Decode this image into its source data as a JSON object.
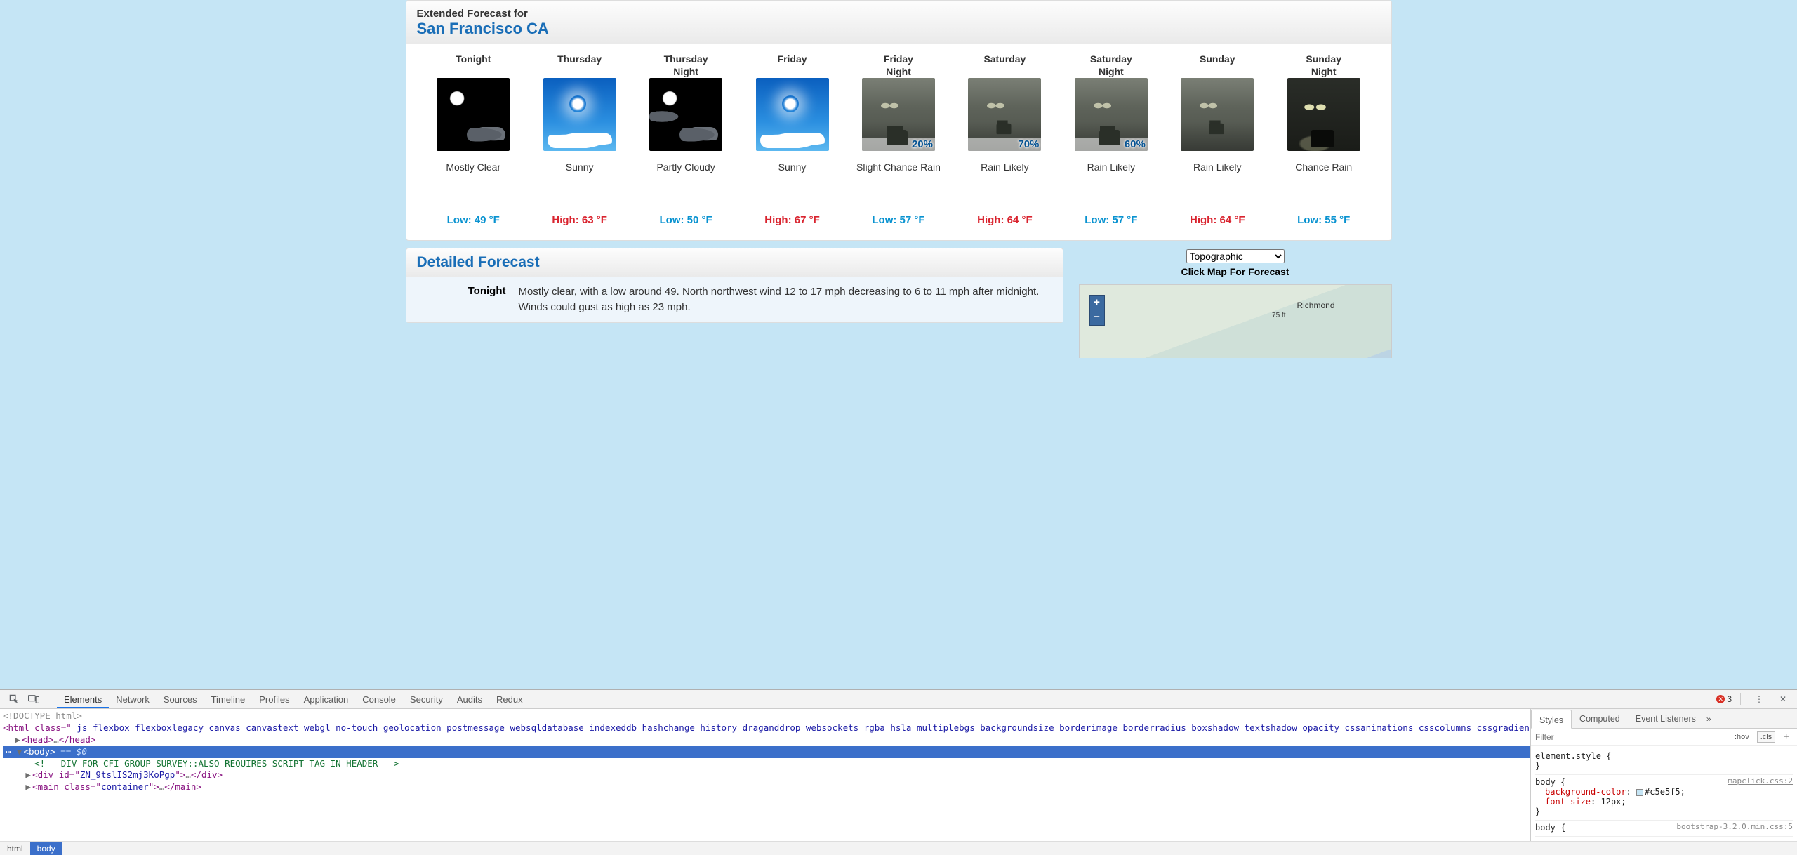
{
  "forecast_panel": {
    "heading_sub": "Extended Forecast for",
    "heading_title": "San Francisco CA"
  },
  "periods": [
    {
      "name1": "Tonight",
      "name2": "",
      "icon": "night",
      "pct": "",
      "short": "Mostly Clear",
      "temp_label": "Low: 49 °F",
      "temp_kind": "low"
    },
    {
      "name1": "Thursday",
      "name2": "",
      "icon": "sunny",
      "pct": "",
      "short": "Sunny",
      "temp_label": "High: 63 °F",
      "temp_kind": "high"
    },
    {
      "name1": "Thursday",
      "name2": "Night",
      "icon": "night-pc",
      "pct": "",
      "short": "Partly Cloudy",
      "temp_label": "Low: 50 °F",
      "temp_kind": "low"
    },
    {
      "name1": "Friday",
      "name2": "",
      "icon": "sunny",
      "pct": "",
      "short": "Sunny",
      "temp_label": "High: 67 °F",
      "temp_kind": "high"
    },
    {
      "name1": "Friday",
      "name2": "Night",
      "icon": "rain",
      "pct": "20%",
      "short": "Slight Chance Rain",
      "temp_label": "Low: 57 °F",
      "temp_kind": "low"
    },
    {
      "name1": "Saturday",
      "name2": "",
      "icon": "rain-far",
      "pct": "70%",
      "short": "Rain Likely",
      "temp_label": "High: 64 °F",
      "temp_kind": "high"
    },
    {
      "name1": "Saturday",
      "name2": "Night",
      "icon": "rain",
      "pct": "60%",
      "short": "Rain Likely",
      "temp_label": "Low: 57 °F",
      "temp_kind": "low"
    },
    {
      "name1": "Sunday",
      "name2": "",
      "icon": "rain-far",
      "pct": "",
      "short": "Rain Likely",
      "temp_label": "High: 64 °F",
      "temp_kind": "high"
    },
    {
      "name1": "Sunday",
      "name2": "Night",
      "icon": "nrain",
      "pct": "",
      "short": "Chance Rain",
      "temp_label": "Low: 55 °F",
      "temp_kind": "low"
    }
  ],
  "detailed": {
    "title": "Detailed Forecast",
    "row_label": "Tonight",
    "row_text": "Mostly clear, with a low around 49. North northwest wind 12 to 17 mph decreasing to 6 to 11 mph after midnight. Winds could gust as high as 23 mph."
  },
  "map": {
    "select_value": "Topographic",
    "caption": "Click Map For Forecast",
    "city1": "Richmond",
    "elev": "75 ft"
  },
  "devtools": {
    "tabs": [
      "Elements",
      "Network",
      "Sources",
      "Timeline",
      "Profiles",
      "Application",
      "Console",
      "Security",
      "Audits",
      "Redux"
    ],
    "active_tab": "Elements",
    "error_count": "3",
    "dom": {
      "doctype": "<!DOCTYPE html>",
      "html_open_a": "<html class=\"",
      "html_classes": " js flexbox flexboxlegacy canvas canvastext webgl no-touch geolocation postmessage websqldatabase indexeddb hashchange history draganddrop websockets rgba hsla multiplebgs backgroundsize borderimage borderradius boxshadow textshadow opacity cssanimations csscolumns cssgradients cssreflections csstransforms csstransforms3d csstransitions fontface generatedcontent video audio localstorage sessionstorage webworkers applicationcache svg inlinesvg smil svgclippaths",
      "html_open_b": "\">",
      "head": "<head>…</head>",
      "body_open": "<body>",
      "eq0": " == $0",
      "comment": "<!-- DIV FOR CFI GROUP SURVEY::ALSO REQUIRES SCRIPT TAG IN HEADER -->",
      "div_a": "<div id=\"",
      "div_id": "ZN_9tslIS2mj3KoPgp",
      "div_b": "\">…</div>",
      "main_a": "<main class=\"",
      "main_cls": "container",
      "main_b": "\">…</main>"
    },
    "styles": {
      "tabs": [
        "Styles",
        "Computed",
        "Event Listeners"
      ],
      "filter_placeholder": "Filter",
      "hov": ":hov",
      "cls": ".cls",
      "rule1_sel": "element.style {",
      "rule2_sel": "body {",
      "rule2_src": "mapclick.css:2",
      "rule2_p1": "background-color",
      "rule2_v1": "#c5e5f5",
      "rule2_p2": "font-size",
      "rule2_v2": "12px",
      "rule3_sel": "body {",
      "rule3_src": "bootstrap-3.2.0.min.css:5"
    },
    "crumbs": [
      "html",
      "body"
    ]
  }
}
